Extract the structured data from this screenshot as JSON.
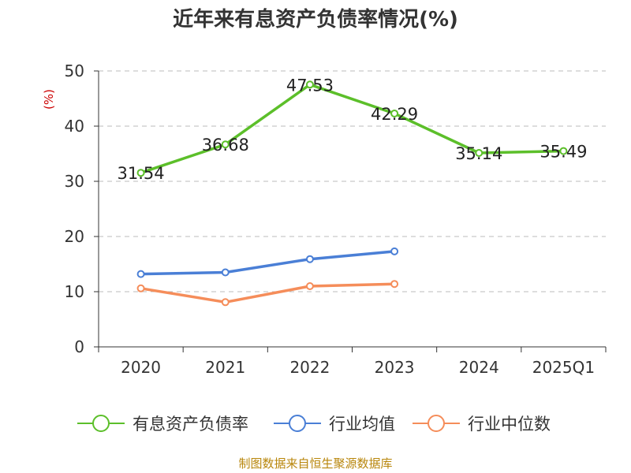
{
  "chart_data": {
    "type": "line",
    "title": "近年来有息资产负债率情况(%)",
    "ylabel": "(%)",
    "xlabel": "",
    "ylim": [
      0,
      50
    ],
    "yticks": [
      0,
      10,
      20,
      30,
      40,
      50
    ],
    "categories": [
      "2020",
      "2021",
      "2022",
      "2023",
      "2024",
      "2025Q1"
    ],
    "series": [
      {
        "name": "有息资产负债率",
        "color": "#5cbf2a",
        "values": [
          31.54,
          36.68,
          47.53,
          42.29,
          35.14,
          35.49
        ],
        "labels": [
          "31.54",
          "36.68",
          "47.53",
          "42.29",
          "35.14",
          "35.49"
        ]
      },
      {
        "name": "行业均值",
        "color": "#4a7fd6",
        "values": [
          13.2,
          13.5,
          15.9,
          17.3,
          null,
          null
        ]
      },
      {
        "name": "行业中位数",
        "color": "#f58d5a",
        "values": [
          10.6,
          8.1,
          11.0,
          11.4,
          null,
          null
        ]
      }
    ],
    "legend_position": "bottom",
    "grid": true,
    "source": "制图数据来自恒生聚源数据库"
  }
}
